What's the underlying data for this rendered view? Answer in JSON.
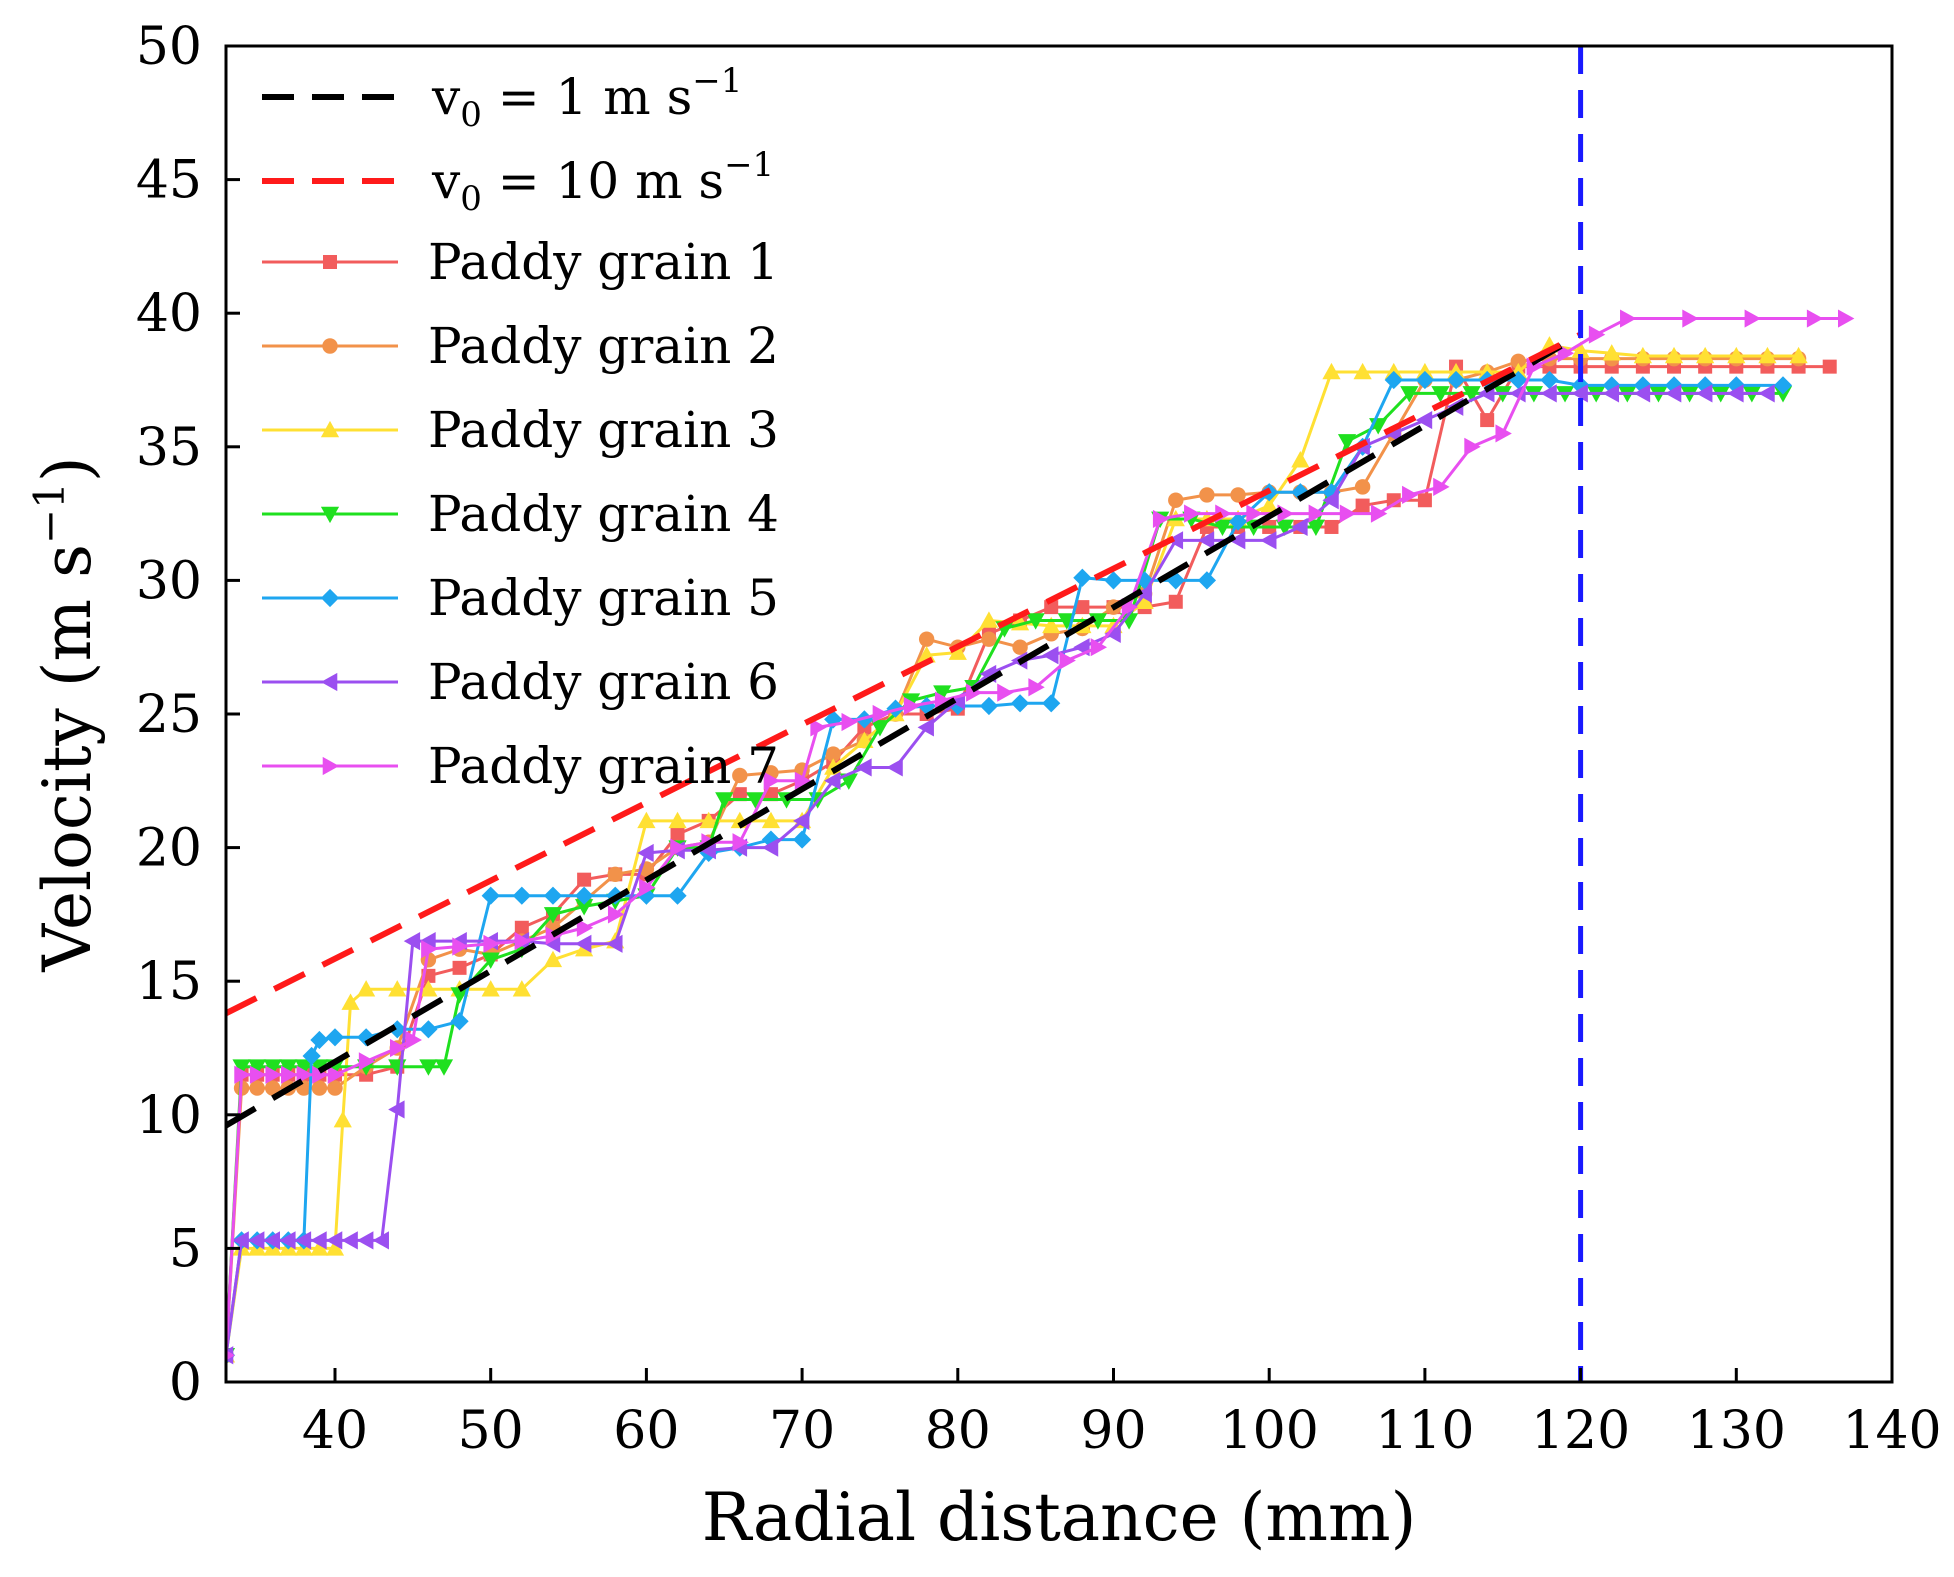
{
  "chart_data": {
    "type": "line",
    "title": "",
    "xlabel": "Radial distance (mm)",
    "ylabel": "Velocity (m s",
    "ylabel_sup": "−1",
    "ylabel_close": ")",
    "xlim": [
      33,
      140
    ],
    "ylim": [
      0,
      50
    ],
    "x_ticks": [
      40,
      50,
      60,
      70,
      80,
      90,
      100,
      110,
      120,
      130,
      140
    ],
    "y_ticks": [
      0,
      5,
      10,
      15,
      20,
      25,
      30,
      35,
      40,
      45,
      50
    ],
    "grid": false,
    "legend_position": "top-left",
    "vertical_marker": {
      "x": 120,
      "color": "#1a1aff",
      "style": "dashed"
    },
    "fits": [
      {
        "name": "v0 = 1 m s-1",
        "label_main": "v",
        "label_sub": "0",
        "label_eq": " = 1 m s",
        "label_sup": "−1",
        "color": "#000000",
        "style": "dashed",
        "x": [
          33,
          120
        ],
        "y": [
          9.6,
          39.2
        ]
      },
      {
        "name": "v0 = 10 m s-1",
        "label_main": "v",
        "label_sub": "0",
        "label_eq": " = 10 m s",
        "label_sup": "−1",
        "color": "#ff1a1a",
        "style": "dashed",
        "x": [
          33,
          120
        ],
        "y": [
          13.8,
          39.2
        ]
      }
    ],
    "series": [
      {
        "name": "Paddy grain 1",
        "color": "#f25c5c",
        "marker": "square",
        "x": [
          33,
          34,
          35,
          36,
          37,
          38,
          39,
          40,
          42,
          44,
          46,
          48,
          50,
          52,
          54,
          56,
          58,
          60,
          62,
          64,
          66,
          68,
          70,
          72,
          74,
          76,
          78,
          80,
          82,
          84,
          86,
          88,
          90,
          92,
          94,
          96,
          98,
          100,
          102,
          104,
          106,
          108,
          110,
          112,
          114,
          116,
          118,
          120,
          122,
          124,
          126,
          128,
          130,
          132,
          134,
          136
        ],
        "y": [
          1,
          11.5,
          11.5,
          11.5,
          11.5,
          11.5,
          11.5,
          11.5,
          11.5,
          11.8,
          15.2,
          15.5,
          16,
          17,
          17.5,
          18.8,
          19,
          19,
          20.5,
          21,
          22,
          22,
          22.5,
          23.2,
          24.5,
          25,
          25,
          25.2,
          28,
          28.5,
          29,
          29,
          29,
          29,
          29.2,
          32,
          32,
          32,
          32,
          32,
          32.8,
          33,
          33,
          38,
          36,
          38,
          38,
          38,
          38,
          38,
          38,
          38,
          38,
          38,
          38,
          38
        ]
      },
      {
        "name": "Paddy grain 2",
        "color": "#f2924a",
        "marker": "circle",
        "x": [
          33,
          34,
          35,
          36,
          37,
          38,
          39,
          40,
          42,
          44,
          46,
          48,
          50,
          52,
          54,
          56,
          58,
          60,
          62,
          64,
          66,
          68,
          70,
          72,
          74,
          76,
          78,
          80,
          82,
          84,
          86,
          88,
          90,
          92,
          94,
          96,
          98,
          100,
          102,
          104,
          106,
          108,
          110,
          112,
          114,
          116,
          118,
          120,
          122,
          124,
          126,
          128,
          130,
          132,
          134
        ],
        "y": [
          1,
          11,
          11,
          11,
          11,
          11,
          11,
          11,
          11.8,
          12.5,
          15.8,
          16.2,
          16,
          16.5,
          17,
          18,
          19,
          19.2,
          20,
          20.2,
          22.7,
          22.8,
          22.9,
          23.5,
          24,
          25,
          27.8,
          27.5,
          27.8,
          27.5,
          28,
          28.2,
          29,
          29.5,
          33,
          33.2,
          33.2,
          33.3,
          33.3,
          33.3,
          33.5,
          35.5,
          37.5,
          37.5,
          37.8,
          38.2,
          38.3,
          38.3,
          38.3,
          38.3,
          38.3,
          38.3,
          38.3,
          38.3,
          38.3
        ]
      },
      {
        "name": "Paddy grain 3",
        "color": "#ffe033",
        "marker": "triangle-up",
        "x": [
          33,
          34,
          35,
          36,
          37,
          38,
          39,
          40,
          40.5,
          41,
          42,
          44,
          46,
          48,
          50,
          52,
          54,
          56,
          58,
          60,
          62,
          64,
          66,
          68,
          70,
          72,
          74,
          76,
          78,
          80,
          82,
          84,
          86,
          88,
          90,
          92,
          94,
          96,
          98,
          100,
          102,
          104,
          106,
          108,
          110,
          112,
          114,
          116,
          118,
          120,
          122,
          124,
          126,
          128,
          130,
          132,
          134
        ],
        "y": [
          1,
          5,
          5,
          5,
          5,
          5,
          5,
          5,
          9.8,
          14.2,
          14.7,
          14.7,
          14.7,
          14.7,
          14.7,
          14.7,
          15.8,
          16.2,
          16.5,
          21,
          21,
          21,
          21,
          21,
          21,
          23,
          24,
          25,
          27.2,
          27.3,
          28.5,
          28.4,
          28.3,
          28.3,
          28.3,
          29.2,
          32.3,
          32.3,
          32.3,
          32.8,
          34.5,
          37.8,
          37.8,
          37.8,
          37.8,
          37.8,
          37.8,
          37.8,
          38.8,
          38.6,
          38.5,
          38.4,
          38.4,
          38.4,
          38.4,
          38.4,
          38.4
        ]
      },
      {
        "name": "Paddy grain 4",
        "color": "#1fe01f",
        "marker": "triangle-down",
        "x": [
          33,
          34,
          35,
          36,
          37,
          38,
          39,
          40,
          42,
          44,
          46,
          47,
          48,
          50,
          52,
          54,
          56,
          58,
          60,
          62,
          64,
          65,
          67,
          69,
          71,
          73,
          75,
          77,
          79,
          81,
          83,
          85,
          87,
          89,
          91,
          93,
          95,
          97,
          99,
          101,
          103,
          105,
          107,
          109,
          111,
          113,
          115,
          117,
          119,
          121,
          123,
          125,
          127,
          129,
          131,
          133
        ],
        "y": [
          1,
          11.8,
          11.8,
          11.8,
          11.8,
          11.8,
          11.8,
          11.8,
          11.8,
          11.8,
          11.8,
          11.8,
          14.5,
          15.8,
          16.2,
          17.5,
          17.8,
          18,
          18.2,
          20,
          20,
          21.8,
          21.8,
          21.8,
          21.8,
          22.5,
          24.5,
          25.5,
          25.8,
          26,
          28.2,
          28.5,
          28.5,
          28.5,
          28.5,
          32.3,
          32.3,
          32,
          32,
          32,
          32,
          35.2,
          35.8,
          37,
          37,
          37,
          37,
          37,
          37,
          37,
          37,
          37,
          37,
          37,
          37,
          37
        ]
      },
      {
        "name": "Paddy grain 5",
        "color": "#1ea6f0",
        "marker": "diamond",
        "x": [
          33,
          34,
          35,
          36,
          37,
          38,
          38.5,
          39,
          40,
          42,
          44,
          46,
          48,
          50,
          52,
          54,
          56,
          58,
          60,
          62,
          64,
          66,
          68,
          70,
          72,
          74,
          76,
          78,
          80,
          82,
          84,
          86,
          88,
          90,
          92,
          94,
          96,
          98,
          100,
          102,
          104,
          106,
          108,
          110,
          112,
          114,
          116,
          118,
          120,
          122,
          124,
          126,
          128,
          130,
          133
        ],
        "y": [
          1,
          5.3,
          5.3,
          5.3,
          5.3,
          5.3,
          12.2,
          12.8,
          12.9,
          12.9,
          13.2,
          13.2,
          13.5,
          18.2,
          18.2,
          18.2,
          18.2,
          18.2,
          18.2,
          18.2,
          19.8,
          20,
          20.3,
          20.3,
          24.8,
          24.8,
          25.2,
          25.3,
          25.3,
          25.3,
          25.4,
          25.4,
          30.1,
          30,
          30,
          30,
          30,
          32.2,
          33.3,
          33.3,
          33.3,
          35,
          37.5,
          37.5,
          37.5,
          37.5,
          37.5,
          37.5,
          37.3,
          37.3,
          37.3,
          37.3,
          37.3,
          37.3,
          37.3
        ]
      },
      {
        "name": "Paddy grain 6",
        "color": "#9b4ff0",
        "marker": "triangle-left",
        "x": [
          33,
          34,
          35,
          36,
          37,
          38,
          39,
          40,
          41,
          42,
          43,
          44,
          45,
          46,
          48,
          50,
          52,
          54,
          56,
          58,
          60,
          62,
          64,
          66,
          68,
          70,
          72,
          74,
          76,
          78,
          80,
          82,
          84,
          86,
          88,
          90,
          92,
          94,
          96,
          98,
          100,
          102,
          104,
          106,
          108,
          110,
          112,
          114,
          116,
          118,
          120,
          122,
          124,
          126,
          128,
          130,
          132
        ],
        "y": [
          1,
          5.3,
          5.3,
          5.3,
          5.3,
          5.3,
          5.3,
          5.3,
          5.3,
          5.3,
          5.3,
          10.2,
          16.5,
          16.5,
          16.5,
          16.5,
          16.5,
          16.4,
          16.4,
          16.4,
          19.8,
          19.9,
          19.9,
          20,
          20,
          21,
          22.5,
          23,
          23,
          24.5,
          25.5,
          26.5,
          27,
          27.2,
          27.5,
          28,
          29.5,
          31.5,
          31.5,
          31.5,
          31.5,
          32,
          33,
          35,
          35.5,
          36,
          36.5,
          37,
          37,
          37,
          37,
          37,
          37,
          37,
          37,
          37,
          37
        ]
      },
      {
        "name": "Paddy grain 7",
        "color": "#e84ff0",
        "marker": "triangle-right",
        "x": [
          33,
          34,
          35,
          36,
          37,
          38,
          39,
          40,
          42,
          44,
          45,
          46,
          48,
          50,
          52,
          54,
          56,
          58,
          60,
          62,
          64,
          66,
          68,
          70,
          71,
          73,
          75,
          77,
          79,
          81,
          83,
          85,
          87,
          89,
          91,
          93,
          95,
          97,
          99,
          101,
          103,
          105,
          107,
          109,
          111,
          113,
          115,
          117,
          119,
          121,
          123,
          127,
          131,
          135,
          137
        ],
        "y": [
          1,
          11.5,
          11.5,
          11.5,
          11.5,
          11.5,
          11.5,
          11.5,
          12,
          12.5,
          12.8,
          16.2,
          16.3,
          16.4,
          16.5,
          16.7,
          17,
          17.5,
          18.5,
          20,
          20.2,
          20.2,
          22.5,
          22.5,
          24.5,
          24.7,
          25,
          25.3,
          25.5,
          25.8,
          25.8,
          26,
          27,
          27.5,
          29,
          32.3,
          32.5,
          32.5,
          32.5,
          32.5,
          32.5,
          32.5,
          32.5,
          33.2,
          33.5,
          35,
          35.5,
          38,
          38.5,
          39.2,
          39.8,
          39.8,
          39.8,
          39.8,
          39.8
        ]
      }
    ]
  }
}
